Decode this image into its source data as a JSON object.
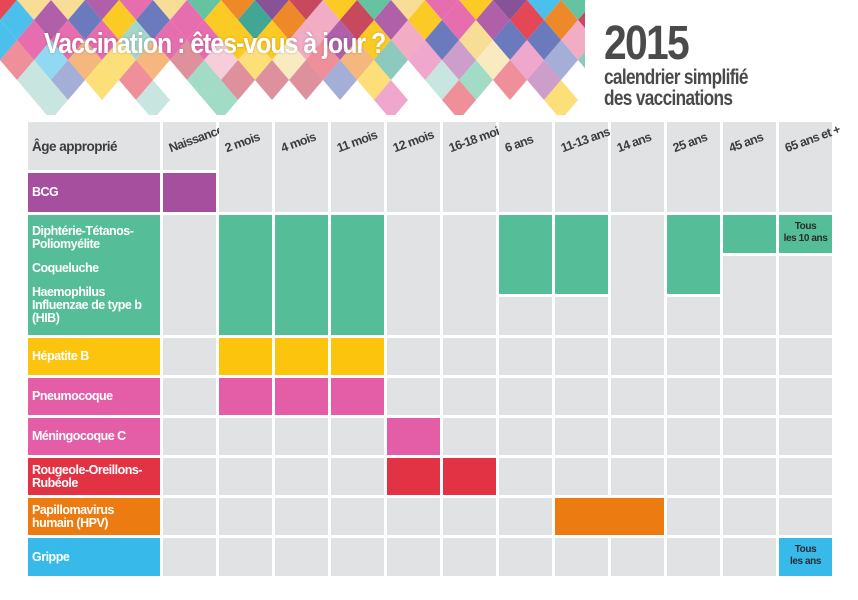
{
  "header": {
    "title": "Vaccination : êtes-vous à jour ?",
    "year": "2015",
    "subtitle_line1": "calendrier simplifié",
    "subtitle_line2": "des vaccinations"
  },
  "table": {
    "corner_label": "Âge approprié",
    "grey": "#e1e2e4",
    "ages": [
      "Naissance",
      "2 mois",
      "4 mois",
      "11 mois",
      "12 mois",
      "16-18 mois",
      "6 ans",
      "11-13 ans",
      "14 ans",
      "25 ans",
      "45 ans",
      "65 ans et +"
    ],
    "vaccines": [
      {
        "id": "bcg",
        "label": "BCG",
        "color": "#a64f9f",
        "ages": [
          "Naissance"
        ]
      },
      {
        "id": "dtp",
        "group": "dtp-group",
        "label": "Diphtérie-Tétanos-Poliomyélite",
        "color": "#55bd98",
        "ages": [
          "2 mois",
          "4 mois",
          "11 mois",
          "6 ans",
          "11-13 ans",
          "25 ans",
          "45 ans",
          "65 ans et +"
        ],
        "notes": {
          "65 ans et +": [
            "Tous",
            "les 10 ans"
          ]
        }
      },
      {
        "id": "coqueluche",
        "group": "dtp-group",
        "label": "Coqueluche",
        "color": "#55bd98",
        "ages": [
          "2 mois",
          "4 mois",
          "11 mois",
          "6 ans",
          "11-13 ans",
          "25 ans"
        ]
      },
      {
        "id": "hib",
        "group": "dtp-group",
        "label": "Haemophilus Influenzae de type b (HIB)",
        "color": "#55bd98",
        "ages": [
          "2 mois",
          "4 mois",
          "11 mois"
        ]
      },
      {
        "id": "hepatite-b",
        "label": "Hépatite B",
        "color": "#fcc40c",
        "ages": [
          "2 mois",
          "4 mois",
          "11 mois"
        ]
      },
      {
        "id": "pneumocoque",
        "label": "Pneumocoque",
        "color": "#e35ea6",
        "ages": [
          "2 mois",
          "4 mois",
          "11 mois"
        ]
      },
      {
        "id": "meningocoque-c",
        "label": "Méningocoque C",
        "color": "#e35ea6",
        "ages": [
          "12 mois"
        ]
      },
      {
        "id": "ror",
        "label": "Rougeole-Oreillons-Rubéole",
        "color": "#e23345",
        "ages": [
          "12 mois",
          "16-18 mois"
        ]
      },
      {
        "id": "hpv",
        "label": "Papillomavirus humain (HPV)",
        "color": "#ec7c12",
        "ages": [
          "11-13 ans",
          "14 ans"
        ],
        "continuous": true
      },
      {
        "id": "grippe",
        "label": "Grippe",
        "color": "#37b9ea",
        "ages": [
          "65 ans et +"
        ],
        "notes": {
          "65 ans et +": [
            "Tous",
            "les ans"
          ]
        }
      }
    ]
  },
  "banner_palette": [
    "#e23345",
    "#a64f9f",
    "#55bd98",
    "#fcc40c",
    "#37b9ea",
    "#ec7c12",
    "#e35ea6",
    "#7a3f8c",
    "#2e9c8a",
    "#c2344d",
    "#f1a3bd",
    "#9bd1c4",
    "#5b6bb5",
    "#f6d98a"
  ]
}
